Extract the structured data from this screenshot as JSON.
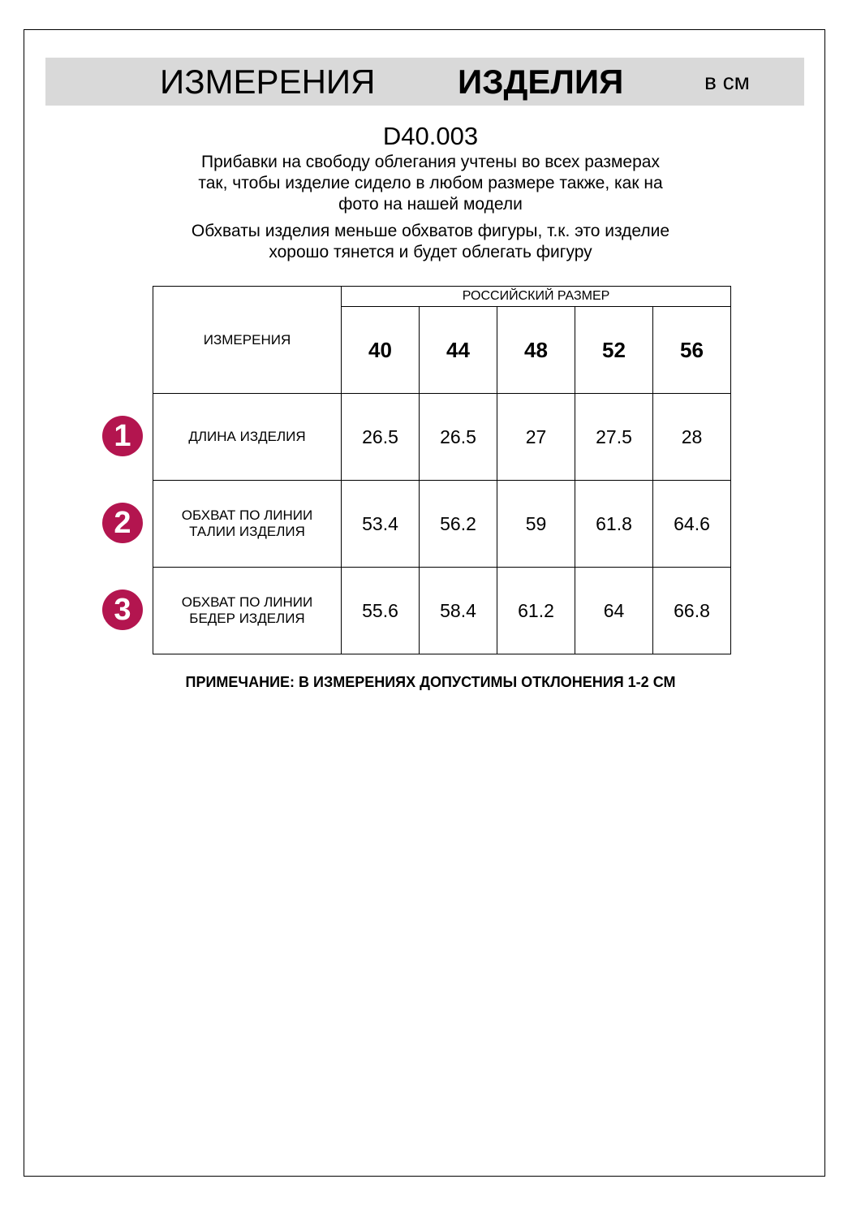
{
  "header": {
    "title_regular": "ИЗМЕРЕНИЯ",
    "title_bold": "ИЗДЕЛИЯ",
    "unit": "в см"
  },
  "code": "D40.003",
  "paragraph1": [
    "Прибавки на свободу облегания учтены во всех размерах",
    "так, чтобы изделие сидело в любом размере также, как на",
    "фото на нашей модели"
  ],
  "paragraph2": [
    "Обхваты изделия меньше обхватов фигуры, т.к. это изделие",
    "хорошо тянется и будет облегать фигуру"
  ],
  "table": {
    "corner": "ИЗМЕРЕНИЯ",
    "group_header": "РОССИЙСКИЙ РАЗМЕР",
    "sizes": [
      "40",
      "44",
      "48",
      "52",
      "56"
    ],
    "rows": [
      {
        "badge": "1",
        "label": "ДЛИНА ИЗДЕЛИЯ",
        "values": [
          "26.5",
          "26.5",
          "27",
          "27.5",
          "28"
        ]
      },
      {
        "badge": "2",
        "label": "ОБХВАТ ПО ЛИНИИ ТАЛИИ ИЗДЕЛИЯ",
        "values": [
          "53.4",
          "56.2",
          "59",
          "61.8",
          "64.6"
        ]
      },
      {
        "badge": "3",
        "label": "ОБХВАТ ПО ЛИНИИ БЕДЕР ИЗДЕЛИЯ",
        "values": [
          "55.6",
          "58.4",
          "61.2",
          "64",
          "66.8"
        ]
      }
    ]
  },
  "note": "ПРИМЕЧАНИЕ: В ИЗМЕРЕНИЯХ ДОПУСТИМЫ ОТКЛОНЕНИЯ 1-2 СМ",
  "colors": {
    "band": "#d9d9d9",
    "badge": "#b3154f"
  }
}
